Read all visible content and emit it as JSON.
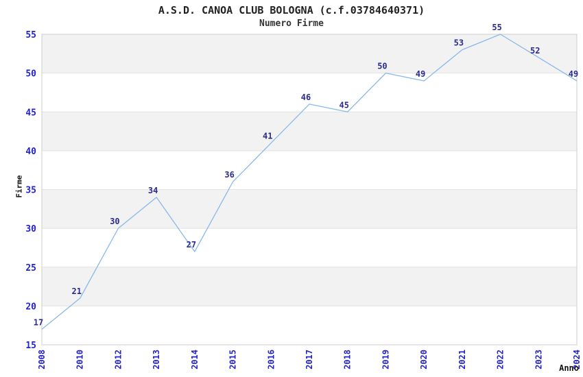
{
  "chart_data": {
    "type": "line",
    "title": "A.S.D. CANOA CLUB BOLOGNA (c.f.03784640371)",
    "subtitle": "Numero Firme",
    "xlabel": "Anno",
    "ylabel": "Firme",
    "x": [
      "2008",
      "2010",
      "2012",
      "2013",
      "2014",
      "2015",
      "2016",
      "2017",
      "2018",
      "2019",
      "2020",
      "2021",
      "2022",
      "2023",
      "2024"
    ],
    "series": [
      {
        "name": "Numero Firme",
        "values": [
          17,
          21,
          30,
          34,
          27,
          36,
          41,
          46,
          45,
          50,
          49,
          53,
          55,
          52,
          49
        ]
      }
    ],
    "ylim": [
      15,
      55
    ],
    "ytick_step": 5,
    "ytick_labels": [
      "15",
      "20",
      "25",
      "30",
      "35",
      "40",
      "45",
      "50",
      "55"
    ],
    "grid": "horizontal-bands",
    "legend": "none",
    "colors": {
      "line": "#86b9ea",
      "data_label": "#2b2b8e",
      "tick_label": "#2222cc",
      "band": "#f2f2f2",
      "gridline": "#e2e2e2",
      "plot_border": "#cccccc",
      "title": "#222222"
    }
  }
}
